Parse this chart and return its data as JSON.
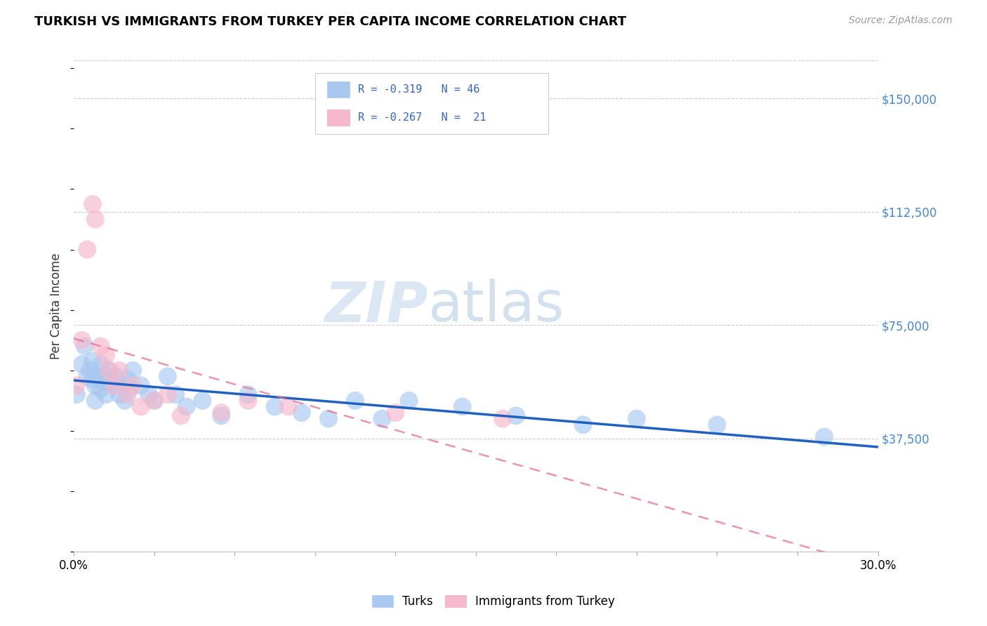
{
  "title": "TURKISH VS IMMIGRANTS FROM TURKEY PER CAPITA INCOME CORRELATION CHART",
  "source": "Source: ZipAtlas.com",
  "ylabel": "Per Capita Income",
  "ytick_labels": [
    "$37,500",
    "$75,000",
    "$112,500",
    "$150,000"
  ],
  "ytick_values": [
    37500,
    75000,
    112500,
    150000
  ],
  "ylim": [
    0,
    162500
  ],
  "xlim": [
    0.0,
    0.3
  ],
  "color_turks": "#a8c8f0",
  "color_immigrants": "#f5b8cc",
  "color_line_turks": "#2060c0",
  "color_line_immigrants": "#e87090",
  "watermark_zip": "ZIP",
  "watermark_atlas": "atlas",
  "turks_x": [
    0.001,
    0.003,
    0.004,
    0.005,
    0.006,
    0.007,
    0.007,
    0.008,
    0.008,
    0.009,
    0.01,
    0.01,
    0.011,
    0.012,
    0.012,
    0.013,
    0.014,
    0.015,
    0.016,
    0.017,
    0.018,
    0.019,
    0.02,
    0.021,
    0.022,
    0.025,
    0.028,
    0.03,
    0.035,
    0.038,
    0.042,
    0.048,
    0.055,
    0.065,
    0.075,
    0.085,
    0.095,
    0.105,
    0.115,
    0.125,
    0.145,
    0.165,
    0.19,
    0.21,
    0.24,
    0.28
  ],
  "turks_y": [
    52000,
    62000,
    68000,
    58000,
    60000,
    63000,
    57000,
    55000,
    50000,
    58000,
    54000,
    62000,
    58000,
    56000,
    52000,
    60000,
    57000,
    55000,
    58000,
    52000,
    55000,
    50000,
    57000,
    54000,
    60000,
    55000,
    52000,
    50000,
    58000,
    52000,
    48000,
    50000,
    45000,
    52000,
    48000,
    46000,
    44000,
    50000,
    44000,
    50000,
    48000,
    45000,
    42000,
    44000,
    42000,
    38000
  ],
  "immigrants_x": [
    0.001,
    0.003,
    0.005,
    0.007,
    0.008,
    0.01,
    0.012,
    0.013,
    0.015,
    0.017,
    0.02,
    0.022,
    0.025,
    0.03,
    0.035,
    0.04,
    0.055,
    0.065,
    0.08,
    0.12,
    0.16
  ],
  "immigrants_y": [
    55000,
    70000,
    100000,
    115000,
    110000,
    68000,
    65000,
    60000,
    55000,
    60000,
    52000,
    55000,
    48000,
    50000,
    52000,
    45000,
    46000,
    50000,
    48000,
    46000,
    44000
  ]
}
